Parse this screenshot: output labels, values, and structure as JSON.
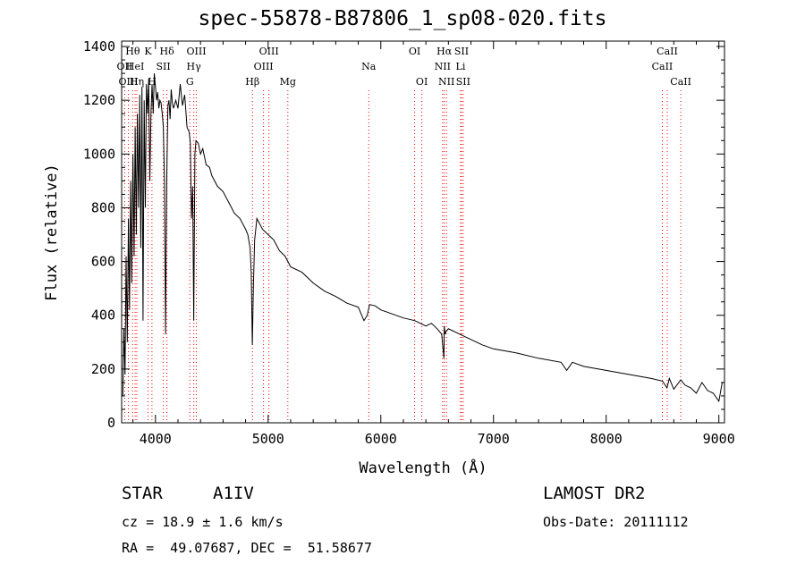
{
  "chart_data": {
    "type": "line",
    "title": "spec-55878-B87806_1_sp08-020.fits",
    "xlabel": "Wavelength (Å)",
    "ylabel": "Flux (relative)",
    "xlim": [
      3700,
      9050
    ],
    "ylim": [
      0,
      1420
    ],
    "x_ticks": [
      4000,
      5000,
      6000,
      7000,
      8000,
      9000
    ],
    "y_ticks": [
      0,
      200,
      400,
      600,
      800,
      1000,
      1200,
      1400
    ],
    "grid": false,
    "line_color": "#000000",
    "marker_color": "#ff0000",
    "series": [
      {
        "x": [
          3710,
          3720,
          3730,
          3740,
          3750,
          3760,
          3770,
          3780,
          3790,
          3800,
          3810,
          3820,
          3830,
          3840,
          3850,
          3860,
          3870,
          3880,
          3890,
          3900,
          3910,
          3920,
          3930,
          3940,
          3950,
          3960,
          3970,
          3980,
          3990,
          4000,
          4010,
          4020,
          4030,
          4040,
          4050,
          4060,
          4070,
          4080,
          4090,
          4100,
          4110,
          4120,
          4130,
          4140,
          4150,
          4160,
          4180,
          4200,
          4220,
          4240,
          4260,
          4280,
          4300,
          4310,
          4320,
          4330,
          4340,
          4350,
          4360,
          4380,
          4400,
          4420,
          4450,
          4480,
          4500,
          4550,
          4600,
          4650,
          4700,
          4750,
          4800,
          4820,
          4840,
          4850,
          4860,
          4870,
          4880,
          4900,
          4950,
          5000,
          5050,
          5100,
          5150,
          5200,
          5300,
          5400,
          5500,
          5600,
          5700,
          5800,
          5850,
          5880,
          5890,
          5900,
          5950,
          6000,
          6100,
          6200,
          6300,
          6400,
          6450,
          6500,
          6540,
          6560,
          6563,
          6570,
          6580,
          6600,
          6700,
          6800,
          6900,
          7000,
          7200,
          7400,
          7600,
          7650,
          7700,
          7800,
          8000,
          8200,
          8400,
          8500,
          8540,
          8560,
          8600,
          8662,
          8700,
          8750,
          8800,
          8850,
          8900,
          8950,
          9000,
          9030
        ],
        "y": [
          100,
          350,
          180,
          620,
          300,
          760,
          420,
          900,
          520,
          1000,
          620,
          1100,
          700,
          1150,
          800,
          1220,
          650,
          1250,
          380,
          1200,
          800,
          1260,
          1150,
          1280,
          900,
          1150,
          1260,
          1150,
          1300,
          1250,
          1200,
          1230,
          1170,
          1200,
          1190,
          1150,
          1100,
          900,
          330,
          900,
          1180,
          1200,
          1130,
          1240,
          1190,
          1170,
          1200,
          1170,
          1260,
          1180,
          1220,
          1100,
          1080,
          1040,
          760,
          880,
          380,
          1000,
          1050,
          1040,
          1000,
          1020,
          960,
          950,
          920,
          880,
          860,
          820,
          780,
          760,
          720,
          700,
          650,
          560,
          290,
          520,
          680,
          760,
          720,
          700,
          680,
          640,
          620,
          580,
          560,
          520,
          490,
          470,
          445,
          430,
          380,
          400,
          420,
          440,
          435,
          420,
          405,
          390,
          380,
          360,
          370,
          350,
          330,
          240,
          360,
          330,
          340,
          350,
          330,
          310,
          290,
          275,
          260,
          240,
          225,
          195,
          225,
          210,
          195,
          180,
          165,
          155,
          130,
          165,
          125,
          160,
          140,
          130,
          110,
          150,
          120,
          110,
          80,
          150
        ]
      }
    ],
    "line_markers": [
      {
        "label": "Hθ",
        "x": 3798,
        "row": 0,
        "anchor": "middle"
      },
      {
        "label": "OII",
        "x": 3727,
        "row": 1,
        "anchor": "middle"
      },
      {
        "label": "HeI",
        "x": 3820,
        "row": 1,
        "anchor": "middle"
      },
      {
        "label": "OIII",
        "x": 3760,
        "row": 2,
        "anchor": "middle"
      },
      {
        "label": "Hη",
        "x": 3835,
        "row": 2,
        "anchor": "middle"
      },
      {
        "label": "K",
        "x": 3934,
        "row": 0,
        "anchor": "middle"
      },
      {
        "label": "SII",
        "x": 4070,
        "row": 1,
        "anchor": "middle"
      },
      {
        "label": "H",
        "x": 3969,
        "row": 2,
        "anchor": "middle"
      },
      {
        "label": "Hδ",
        "x": 4102,
        "row": 0,
        "anchor": "middle"
      },
      {
        "label": "OIII",
        "x": 4363,
        "row": 0,
        "anchor": "middle"
      },
      {
        "label": "Hγ",
        "x": 4340,
        "row": 1,
        "anchor": "middle"
      },
      {
        "label": "G",
        "x": 4305,
        "row": 2,
        "anchor": "middle"
      },
      {
        "label": "Hβ",
        "x": 4861,
        "row": 2,
        "anchor": "middle"
      },
      {
        "label": "OIII",
        "x": 5007,
        "row": 0,
        "anchor": "middle"
      },
      {
        "label": "OIII",
        "x": 4959,
        "row": 1,
        "anchor": "middle"
      },
      {
        "label": "Mg",
        "x": 5175,
        "row": 2,
        "anchor": "middle"
      },
      {
        "label": "Na",
        "x": 5893,
        "row": 1,
        "anchor": "middle"
      },
      {
        "label": "OI",
        "x": 6300,
        "row": 0,
        "anchor": "middle"
      },
      {
        "label": "OI",
        "x": 6364,
        "row": 2,
        "anchor": "middle"
      },
      {
        "label": "Hα",
        "x": 6563,
        "row": 0,
        "anchor": "middle"
      },
      {
        "label": "SII",
        "x": 6716,
        "row": 0,
        "anchor": "middle"
      },
      {
        "label": "NII",
        "x": 6548,
        "row": 1,
        "anchor": "middle"
      },
      {
        "label": "Li",
        "x": 6708,
        "row": 1,
        "anchor": "middle"
      },
      {
        "label": "NII",
        "x": 6583,
        "row": 2,
        "anchor": "middle"
      },
      {
        "label": "SII",
        "x": 6731,
        "row": 2,
        "anchor": "middle"
      },
      {
        "label": "CaII",
        "x": 8542,
        "row": 0,
        "anchor": "middle"
      },
      {
        "label": "CaII",
        "x": 8498,
        "row": 1,
        "anchor": "middle"
      },
      {
        "label": "CaII",
        "x": 8662,
        "row": 2,
        "anchor": "middle"
      }
    ]
  },
  "footer": {
    "object_class": "STAR",
    "subclass": "A1IV",
    "survey": "LAMOST DR2",
    "redshift": "cz = 18.9 ± 1.6 km/s",
    "obs_date": "Obs-Date: 20111112",
    "coordinates": "RA =  49.07687, DEC =  51.58677"
  }
}
